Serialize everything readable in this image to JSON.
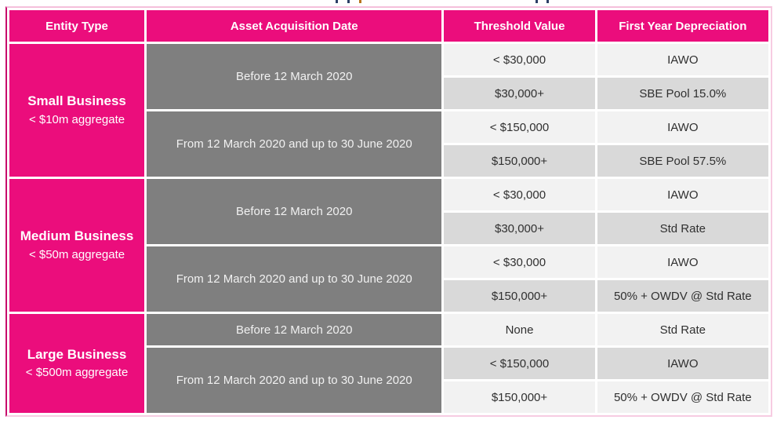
{
  "colors": {
    "brand_pink": "#eb0d7c",
    "date_cell_gray": "#7f7f7f",
    "row_light": "#f2f2f2",
    "row_dark": "#d9d9d9",
    "outer_border_light_pink": "#f7cce2",
    "outer_border_dark_pink": "#c70d6c",
    "value_text": "#303030"
  },
  "table": {
    "columns": [
      "Entity Type",
      "Asset Acquisition Date",
      "Threshold Value",
      "First Year Depreciation"
    ],
    "sections": [
      {
        "entity": "Small Business",
        "aggregate": "< $10m aggregate",
        "date_groups": [
          {
            "date": "Before 12 March 2020",
            "rows": [
              {
                "threshold": "< $30,000",
                "depreciation": "IAWO"
              },
              {
                "threshold": "$30,000+",
                "depreciation": "SBE Pool 15.0%"
              }
            ]
          },
          {
            "date": "From 12 March 2020 and up to 30 June 2020",
            "rows": [
              {
                "threshold": "< $150,000",
                "depreciation": "IAWO"
              },
              {
                "threshold": "$150,000+",
                "depreciation": "SBE Pool 57.5%"
              }
            ]
          }
        ]
      },
      {
        "entity": "Medium Business",
        "aggregate": "< $50m aggregate",
        "date_groups": [
          {
            "date": "Before 12 March 2020",
            "rows": [
              {
                "threshold": "< $30,000",
                "depreciation": "IAWO"
              },
              {
                "threshold": "$30,000+",
                "depreciation": "Std Rate"
              }
            ]
          },
          {
            "date": "From 12 March 2020 and up to 30 June 2020",
            "rows": [
              {
                "threshold": "< $30,000",
                "depreciation": "IAWO"
              },
              {
                "threshold": "$150,000+",
                "depreciation": "50% + OWDV @ Std Rate"
              }
            ]
          }
        ]
      },
      {
        "entity": "Large Business",
        "aggregate": "< $500m aggregate",
        "date_groups": [
          {
            "date": "Before 12 March 2020",
            "rows": [
              {
                "threshold": "None",
                "depreciation": "Std Rate"
              }
            ]
          },
          {
            "date": "From 12 March 2020 and up to 30 June 2020",
            "rows": [
              {
                "threshold": "< $150,000",
                "depreciation": "IAWO"
              },
              {
                "threshold": "$150,000+",
                "depreciation": "50% + OWDV @ Std Rate"
              }
            ]
          }
        ]
      }
    ]
  }
}
